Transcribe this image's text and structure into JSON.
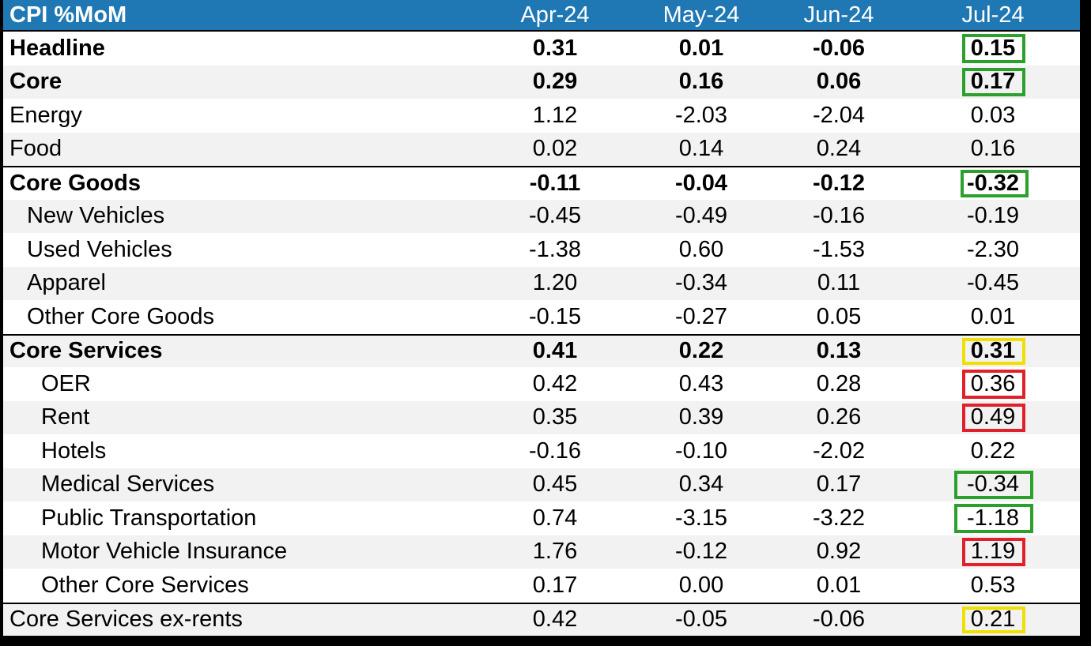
{
  "chart_data": {
    "type": "table",
    "title": "CPI %MoM",
    "columns": [
      "Apr-24",
      "May-24",
      "Jun-24",
      "Jul-24"
    ],
    "highlight_colors": {
      "green": "#2ca02c",
      "red": "#e0202a",
      "yellow": "#f0e000"
    },
    "colors": {
      "header_bg": "#1f78b4",
      "header_text": "#ffffff",
      "shaded_row": "#f2f2f2"
    },
    "rows": [
      {
        "label": "Headline",
        "indent": 0,
        "bold": true,
        "sep_top": false,
        "values": [
          "0.31",
          "0.01",
          "-0.06",
          "0.15"
        ],
        "highlight": "green"
      },
      {
        "label": "Core",
        "indent": 0,
        "bold": true,
        "sep_top": false,
        "values": [
          "0.29",
          "0.16",
          "0.06",
          "0.17"
        ],
        "highlight": "green"
      },
      {
        "label": "Energy",
        "indent": 0,
        "bold": false,
        "sep_top": false,
        "values": [
          "1.12",
          "-2.03",
          "-2.04",
          "0.03"
        ],
        "highlight": ""
      },
      {
        "label": "Food",
        "indent": 0,
        "bold": false,
        "sep_top": false,
        "values": [
          "0.02",
          "0.14",
          "0.24",
          "0.16"
        ],
        "highlight": ""
      },
      {
        "label": "Core Goods",
        "indent": 0,
        "bold": true,
        "sep_top": true,
        "values": [
          "-0.11",
          "-0.04",
          "-0.12",
          "-0.32"
        ],
        "highlight": "green"
      },
      {
        "label": "New Vehicles",
        "indent": 1,
        "bold": false,
        "sep_top": false,
        "values": [
          "-0.45",
          "-0.49",
          "-0.16",
          "-0.19"
        ],
        "highlight": ""
      },
      {
        "label": "Used Vehicles",
        "indent": 1,
        "bold": false,
        "sep_top": false,
        "values": [
          "-1.38",
          "0.60",
          "-1.53",
          "-2.30"
        ],
        "highlight": ""
      },
      {
        "label": "Apparel",
        "indent": 1,
        "bold": false,
        "sep_top": false,
        "values": [
          "1.20",
          "-0.34",
          "0.11",
          "-0.45"
        ],
        "highlight": ""
      },
      {
        "label": "Other Core Goods",
        "indent": 1,
        "bold": false,
        "sep_top": false,
        "values": [
          "-0.15",
          "-0.27",
          "0.05",
          "0.01"
        ],
        "highlight": ""
      },
      {
        "label": "Core Services",
        "indent": 0,
        "bold": true,
        "sep_top": true,
        "values": [
          "0.41",
          "0.22",
          "0.13",
          "0.31"
        ],
        "highlight": "yellow"
      },
      {
        "label": "OER",
        "indent": 2,
        "bold": false,
        "sep_top": false,
        "values": [
          "0.42",
          "0.43",
          "0.28",
          "0.36"
        ],
        "highlight": "red"
      },
      {
        "label": "Rent",
        "indent": 2,
        "bold": false,
        "sep_top": false,
        "values": [
          "0.35",
          "0.39",
          "0.26",
          "0.49"
        ],
        "highlight": "red"
      },
      {
        "label": "Hotels",
        "indent": 2,
        "bold": false,
        "sep_top": false,
        "values": [
          "-0.16",
          "-0.10",
          "-2.02",
          "0.22"
        ],
        "highlight": ""
      },
      {
        "label": "Medical Services",
        "indent": 2,
        "bold": false,
        "sep_top": false,
        "values": [
          "0.45",
          "0.34",
          "0.17",
          "-0.34"
        ],
        "highlight": "green"
      },
      {
        "label": "Public Transportation",
        "indent": 2,
        "bold": false,
        "sep_top": false,
        "values": [
          "0.74",
          "-3.15",
          "-3.22",
          "-1.18"
        ],
        "highlight": "green"
      },
      {
        "label": "Motor Vehicle Insurance",
        "indent": 2,
        "bold": false,
        "sep_top": false,
        "values": [
          "1.76",
          "-0.12",
          "0.92",
          "1.19"
        ],
        "highlight": "red"
      },
      {
        "label": "Other Core Services",
        "indent": 2,
        "bold": false,
        "sep_top": false,
        "values": [
          "0.17",
          "0.00",
          "0.01",
          "0.53"
        ],
        "highlight": ""
      },
      {
        "label": "Core Services ex-rents",
        "indent": 0,
        "bold": false,
        "sep_top": true,
        "values": [
          "0.42",
          "-0.05",
          "-0.06",
          "0.21"
        ],
        "highlight": "yellow"
      }
    ]
  }
}
